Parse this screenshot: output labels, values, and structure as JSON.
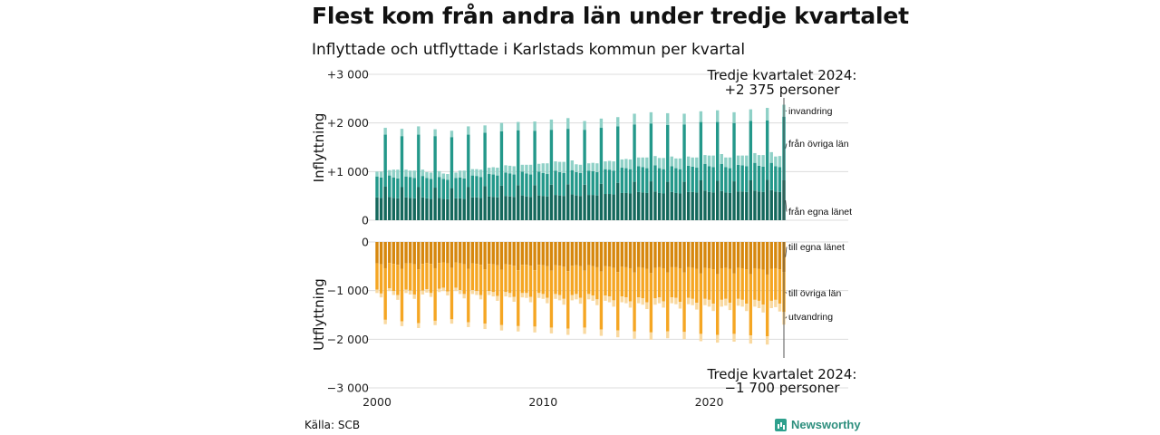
{
  "title": "Flest kom från andra län under tredje kvartalet",
  "subtitle": "Inflyttade och utflyttade i Karlstads kommun per kvartal",
  "source": "Källa: SCB",
  "brand": "Newsworthy",
  "colors": {
    "in_egna": "#14685c",
    "in_ovriga": "#23988a",
    "in_invandring": "#8fd1c7",
    "ut_egna": "#d6870d",
    "ut_ovriga": "#f5a623",
    "ut_utvandring": "#f9d9a0",
    "grid": "#dcdcdc",
    "brand": "#2ea08d"
  },
  "chart_data": [
    {
      "type": "bar",
      "stacked": true,
      "ylabel": "Inflyttning",
      "ylim": [
        0,
        3000
      ],
      "yticks": [
        0,
        1000,
        2000,
        3000
      ],
      "ytick_labels": [
        "0",
        "+1 000",
        "+2 000",
        "+3 000"
      ],
      "x_start": "2000Q1",
      "x_end": "2024Q3",
      "xticks": [
        "2000",
        "2010",
        "2020"
      ],
      "grid": true,
      "series": [
        {
          "name": "från egna länet",
          "values": [
            470,
            460,
            690,
            480,
            460,
            450,
            680,
            470,
            460,
            450,
            680,
            470,
            450,
            440,
            670,
            460,
            440,
            430,
            660,
            450,
            450,
            440,
            680,
            470,
            470,
            460,
            700,
            490,
            480,
            470,
            710,
            500,
            490,
            480,
            720,
            510,
            490,
            480,
            720,
            510,
            500,
            490,
            730,
            520,
            510,
            500,
            740,
            530,
            510,
            500,
            730,
            520,
            520,
            510,
            750,
            540,
            540,
            530,
            770,
            560,
            560,
            550,
            790,
            580,
            570,
            560,
            800,
            590,
            560,
            550,
            790,
            580,
            560,
            550,
            790,
            580,
            580,
            570,
            820,
            610,
            580,
            570,
            810,
            600,
            570,
            560,
            800,
            590,
            590,
            580,
            820,
            610,
            590,
            580,
            830,
            620,
            590,
            580,
            820
          ]
        },
        {
          "name": "från övriga län",
          "values": [
            430,
            420,
            1070,
            440,
            420,
            410,
            1050,
            430,
            430,
            420,
            1080,
            440,
            420,
            410,
            1060,
            430,
            410,
            400,
            1050,
            420,
            430,
            420,
            1080,
            450,
            440,
            430,
            1100,
            460,
            460,
            450,
            1120,
            480,
            470,
            460,
            1130,
            490,
            470,
            460,
            1120,
            490,
            470,
            460,
            1130,
            500,
            480,
            470,
            1140,
            500,
            480,
            470,
            1130,
            500,
            490,
            480,
            1150,
            510,
            500,
            490,
            1160,
            520,
            510,
            500,
            1180,
            530,
            520,
            510,
            1190,
            540,
            510,
            500,
            1170,
            530,
            510,
            500,
            1180,
            540,
            520,
            510,
            1200,
            550,
            530,
            520,
            1210,
            560,
            520,
            510,
            1200,
            550,
            540,
            530,
            1220,
            570,
            530,
            520,
            1220,
            560,
            520,
            510,
            1310
          ]
        },
        {
          "name": "invandring",
          "values": [
            100,
            120,
            140,
            110,
            160,
            180,
            150,
            140,
            130,
            150,
            170,
            130,
            120,
            130,
            140,
            120,
            110,
            120,
            130,
            110,
            140,
            160,
            170,
            130,
            140,
            150,
            150,
            130,
            150,
            160,
            170,
            150,
            160,
            170,
            170,
            140,
            180,
            200,
            190,
            160,
            200,
            220,
            210,
            190,
            210,
            230,
            220,
            200,
            160,
            170,
            180,
            150,
            170,
            180,
            190,
            160,
            180,
            190,
            190,
            170,
            190,
            200,
            220,
            180,
            200,
            220,
            230,
            190,
            210,
            230,
            240,
            200,
            200,
            220,
            220,
            190,
            190,
            210,
            220,
            180,
            220,
            240,
            240,
            200,
            200,
            220,
            220,
            190,
            200,
            220,
            240,
            200,
            220,
            240,
            260,
            220,
            200,
            230,
            245
          ]
        }
      ]
    },
    {
      "type": "bar",
      "stacked": true,
      "ylabel": "Utflyttning",
      "ylim": [
        -3000,
        0
      ],
      "yticks": [
        0,
        -1000,
        -2000,
        -3000
      ],
      "ytick_labels": [
        "0",
        "−1 000",
        "−2 000",
        "−3 000"
      ],
      "x_start": "2000Q1",
      "x_end": "2024Q3",
      "grid": true,
      "series": [
        {
          "name": "till egna länet",
          "values": [
            -440,
            -460,
            -540,
            -430,
            -450,
            -470,
            -550,
            -440,
            -440,
            -460,
            -560,
            -450,
            -430,
            -450,
            -540,
            -430,
            -420,
            -440,
            -530,
            -420,
            -440,
            -460,
            -550,
            -440,
            -450,
            -470,
            -560,
            -450,
            -460,
            -480,
            -570,
            -460,
            -470,
            -490,
            -580,
            -470,
            -470,
            -490,
            -580,
            -470,
            -480,
            -500,
            -590,
            -480,
            -490,
            -510,
            -600,
            -490,
            -480,
            -500,
            -590,
            -480,
            -500,
            -520,
            -610,
            -500,
            -510,
            -530,
            -620,
            -510,
            -520,
            -540,
            -630,
            -520,
            -530,
            -550,
            -640,
            -530,
            -520,
            -540,
            -630,
            -520,
            -520,
            -540,
            -630,
            -520,
            -530,
            -550,
            -650,
            -530,
            -540,
            -560,
            -660,
            -540,
            -530,
            -550,
            -650,
            -530,
            -540,
            -560,
            -660,
            -540,
            -550,
            -570,
            -670,
            -550,
            -540,
            -560,
            -620
          ]
        },
        {
          "name": "till övriga län",
          "values": [
            -540,
            -600,
            -1060,
            -520,
            -560,
            -620,
            -1080,
            -540,
            -560,
            -620,
            -1110,
            -550,
            -540,
            -600,
            -1080,
            -530,
            -520,
            -580,
            -1060,
            -520,
            -550,
            -610,
            -1100,
            -550,
            -560,
            -620,
            -1120,
            -560,
            -570,
            -630,
            -1140,
            -570,
            -580,
            -640,
            -1150,
            -580,
            -580,
            -640,
            -1160,
            -580,
            -590,
            -650,
            -1170,
            -590,
            -600,
            -660,
            -1180,
            -600,
            -590,
            -650,
            -1170,
            -590,
            -600,
            -660,
            -1190,
            -600,
            -610,
            -670,
            -1200,
            -610,
            -620,
            -680,
            -1210,
            -620,
            -630,
            -690,
            -1220,
            -630,
            -620,
            -680,
            -1210,
            -620,
            -630,
            -690,
            -1220,
            -630,
            -640,
            -700,
            -1240,
            -640,
            -650,
            -710,
            -1250,
            -650,
            -640,
            -700,
            -1240,
            -640,
            -650,
            -710,
            -1260,
            -650,
            -660,
            -720,
            -1270,
            -660,
            -650,
            -710,
            -820
          ]
        },
        {
          "name": "utvandring",
          "values": [
            -70,
            -80,
            -90,
            -60,
            -80,
            -100,
            -100,
            -70,
            -80,
            -90,
            -100,
            -80,
            -70,
            -80,
            -90,
            -70,
            -70,
            -80,
            -90,
            -70,
            -80,
            -90,
            -100,
            -80,
            -80,
            -90,
            -110,
            -80,
            -90,
            -100,
            -110,
            -90,
            -90,
            -100,
            -110,
            -90,
            -100,
            -110,
            -120,
            -100,
            -100,
            -110,
            -120,
            -100,
            -110,
            -120,
            -130,
            -110,
            -110,
            -120,
            -130,
            -110,
            -110,
            -120,
            -130,
            -110,
            -120,
            -130,
            -140,
            -120,
            -120,
            -130,
            -150,
            -120,
            -130,
            -140,
            -150,
            -130,
            -120,
            -130,
            -140,
            -120,
            -130,
            -140,
            -150,
            -130,
            -130,
            -140,
            -150,
            -130,
            -140,
            -150,
            -160,
            -140,
            -140,
            -150,
            -160,
            -140,
            -140,
            -150,
            -170,
            -140,
            -150,
            -160,
            -170,
            -150,
            -150,
            -160,
            -260
          ]
        }
      ]
    }
  ],
  "annotations": {
    "top_line1": "Tredje kvartalet 2024:",
    "top_line2": "+2 375 personer",
    "bottom_line1": "Tredje kvartalet 2024:",
    "bottom_line2": "−1 700 personer"
  }
}
